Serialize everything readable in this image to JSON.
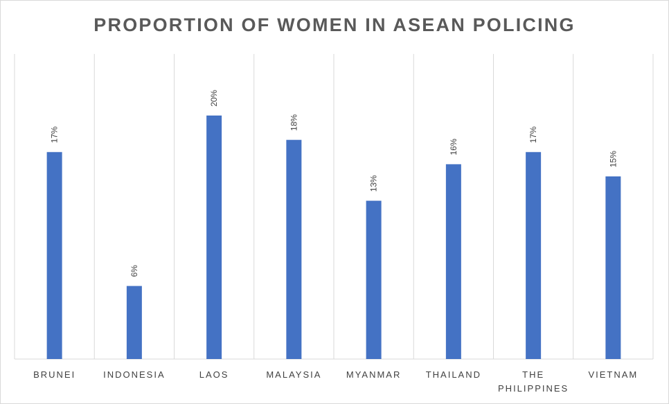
{
  "chart_data": {
    "type": "bar",
    "title": "PROPORTION OF WOMEN IN ASEAN POLICING",
    "categories": [
      "BRUNEI",
      "INDONESIA",
      "LAOS",
      "MALAYSIA",
      "MYANMAR",
      "THAILAND",
      "THE PHILIPPINES",
      "VIETNAM"
    ],
    "category_lines": [
      [
        "BRUNEI"
      ],
      [
        "INDONESIA"
      ],
      [
        "LAOS"
      ],
      [
        "MALAYSIA"
      ],
      [
        "MYANMAR"
      ],
      [
        "THAILAND"
      ],
      [
        "THE",
        "PHILIPPINES"
      ],
      [
        "VIETNAM"
      ]
    ],
    "values": [
      17,
      6,
      20,
      18,
      13,
      16,
      17,
      15
    ],
    "data_labels": [
      "17%",
      "6%",
      "20%",
      "18%",
      "13%",
      "16%",
      "17%",
      "15%"
    ],
    "ylim": [
      0,
      20
    ],
    "grid": "vertical",
    "bar_color": "#4472C4",
    "grid_color": "#d9d9d9",
    "text_color": "#404040",
    "title_color": "#595959"
  }
}
